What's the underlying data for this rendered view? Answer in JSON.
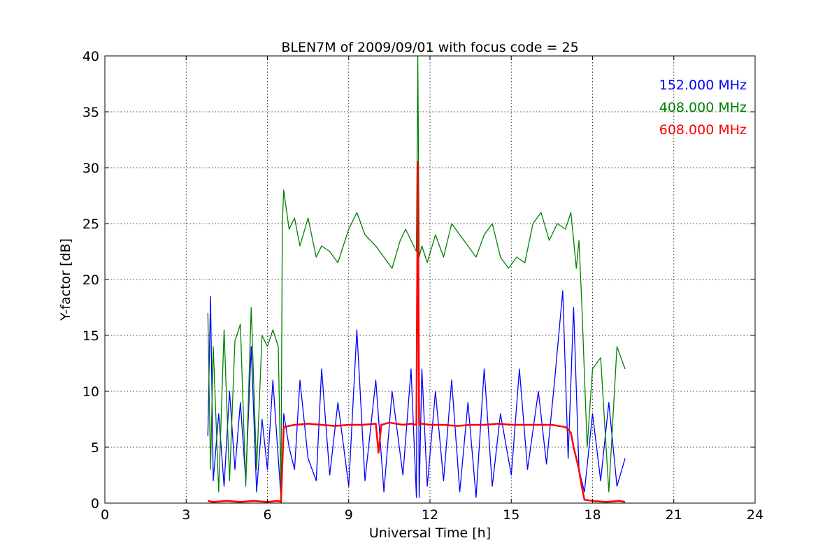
{
  "chart_data": {
    "type": "line",
    "title": "BLEN7M of 2009/09/01 with focus code = 25",
    "xlabel": "Universal Time [h]",
    "ylabel": "Y-factor [dB]",
    "xlim": [
      0,
      24
    ],
    "ylim": [
      0,
      40
    ],
    "xticks": [
      0,
      3,
      6,
      9,
      12,
      15,
      18,
      21,
      24
    ],
    "yticks": [
      0,
      5,
      10,
      15,
      20,
      25,
      30,
      35,
      40
    ],
    "grid": true,
    "legend_position": "top-right",
    "series": [
      {
        "name": "152.000 MHz",
        "color": "#0000ff",
        "x": [
          3.8,
          3.9,
          4.0,
          4.2,
          4.4,
          4.6,
          4.8,
          5.0,
          5.2,
          5.4,
          5.6,
          5.8,
          6.0,
          6.2,
          6.5,
          6.6,
          6.8,
          7.0,
          7.2,
          7.5,
          7.8,
          8.0,
          8.3,
          8.6,
          9.0,
          9.3,
          9.6,
          10.0,
          10.3,
          10.6,
          11.0,
          11.3,
          11.5,
          11.55,
          11.6,
          11.7,
          11.9,
          12.2,
          12.5,
          12.8,
          13.1,
          13.4,
          13.7,
          14.0,
          14.3,
          14.6,
          15.0,
          15.3,
          15.6,
          16.0,
          16.3,
          16.6,
          16.9,
          17.1,
          17.3,
          17.5,
          17.7,
          18.0,
          18.3,
          18.6,
          18.9,
          19.2
        ],
        "y": [
          6.0,
          18.5,
          2.0,
          8.0,
          1.5,
          10.0,
          3.0,
          9.0,
          2.0,
          14.0,
          1.0,
          7.5,
          3.0,
          11.0,
          0.5,
          8.0,
          5.0,
          3.0,
          11.0,
          4.0,
          2.0,
          12.0,
          2.5,
          9.0,
          1.5,
          15.5,
          2.0,
          11.0,
          1.0,
          10.0,
          2.5,
          12.0,
          0.5,
          30.0,
          0.5,
          12.0,
          1.5,
          10.0,
          2.0,
          11.0,
          1.0,
          9.0,
          0.5,
          12.0,
          1.5,
          8.0,
          2.5,
          12.0,
          3.0,
          10.0,
          3.5,
          11.0,
          19.0,
          4.0,
          17.5,
          3.0,
          1.0,
          8.0,
          2.0,
          9.0,
          1.5,
          4.0
        ]
      },
      {
        "name": "408.000 MHz",
        "color": "#008000",
        "x": [
          3.8,
          3.9,
          4.0,
          4.2,
          4.4,
          4.6,
          4.8,
          5.0,
          5.2,
          5.4,
          5.6,
          5.8,
          6.0,
          6.2,
          6.4,
          6.5,
          6.55,
          6.6,
          6.8,
          7.0,
          7.2,
          7.5,
          7.8,
          8.0,
          8.3,
          8.6,
          8.8,
          9.0,
          9.3,
          9.6,
          10.0,
          10.3,
          10.6,
          10.9,
          11.1,
          11.3,
          11.5,
          11.55,
          11.6,
          11.7,
          11.9,
          12.2,
          12.5,
          12.8,
          13.1,
          13.4,
          13.7,
          14.0,
          14.3,
          14.6,
          14.9,
          15.2,
          15.5,
          15.8,
          16.1,
          16.4,
          16.7,
          17.0,
          17.2,
          17.4,
          17.5,
          17.6,
          17.8,
          18.0,
          18.3,
          18.6,
          18.9,
          19.2
        ],
        "y": [
          17.0,
          3.0,
          14.0,
          1.0,
          15.5,
          2.0,
          14.5,
          16.0,
          1.5,
          17.5,
          3.0,
          15.0,
          14.0,
          15.5,
          14.0,
          1.0,
          25.0,
          28.0,
          24.5,
          25.5,
          23.0,
          25.5,
          22.0,
          23.0,
          22.5,
          21.5,
          23.0,
          24.5,
          26.0,
          24.0,
          23.0,
          22.0,
          21.0,
          23.5,
          24.5,
          23.5,
          22.5,
          40.0,
          22.0,
          23.0,
          21.5,
          24.0,
          22.0,
          25.0,
          24.0,
          23.0,
          22.0,
          24.0,
          25.0,
          22.0,
          21.0,
          22.0,
          21.5,
          25.0,
          26.0,
          23.5,
          25.0,
          24.5,
          26.0,
          21.0,
          23.5,
          18.0,
          5.0,
          12.0,
          13.0,
          1.0,
          14.0,
          12.0
        ]
      },
      {
        "name": "608.000 MHz",
        "color": "#ff0000",
        "x": [
          3.8,
          4.0,
          4.5,
          5.0,
          5.5,
          6.0,
          6.4,
          6.5,
          6.6,
          7.0,
          7.5,
          8.0,
          8.5,
          9.0,
          9.5,
          10.0,
          10.1,
          10.2,
          10.5,
          11.0,
          11.3,
          11.5,
          11.55,
          11.6,
          11.7,
          12.0,
          12.5,
          13.0,
          13.5,
          14.0,
          14.5,
          15.0,
          15.5,
          16.0,
          16.5,
          17.0,
          17.2,
          17.3,
          17.4,
          17.5,
          17.6,
          17.7,
          18.0,
          18.5,
          19.0,
          19.2
        ],
        "y": [
          0.2,
          0.1,
          0.2,
          0.1,
          0.2,
          0.1,
          0.2,
          0.1,
          6.8,
          7.0,
          7.1,
          7.0,
          6.9,
          7.0,
          7.0,
          7.1,
          4.5,
          7.0,
          7.2,
          7.0,
          7.1,
          7.0,
          30.5,
          7.0,
          7.1,
          7.0,
          7.0,
          6.9,
          7.0,
          7.0,
          7.1,
          7.0,
          7.0,
          7.0,
          7.0,
          6.8,
          6.3,
          5.0,
          4.0,
          3.0,
          1.5,
          0.3,
          0.2,
          0.1,
          0.2,
          0.1
        ]
      }
    ]
  }
}
